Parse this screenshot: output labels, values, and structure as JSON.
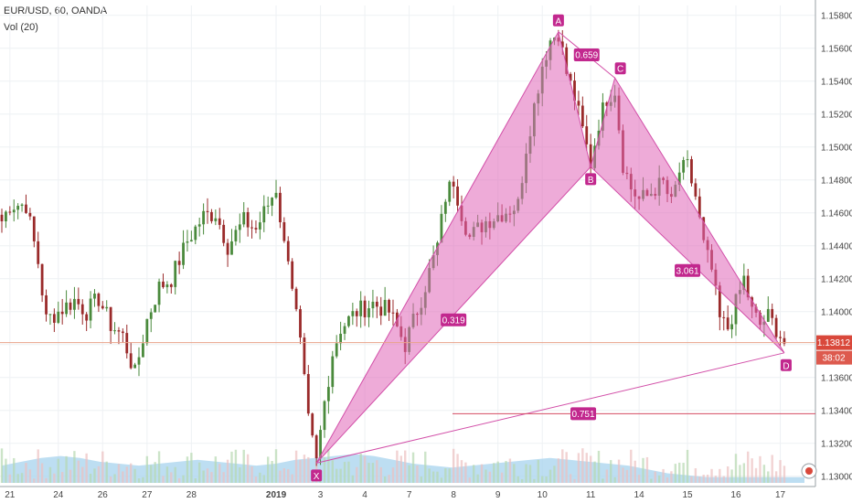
{
  "header": {
    "symbol_line": "EUR/USD, 60, OANDA",
    "volume_line": "Vol (20)"
  },
  "colors": {
    "up_candle": "#4a8a3c",
    "down_candle": "#9a2a2a",
    "pattern_fill": "#e066b8",
    "pattern_line": "#d24fa8",
    "label_bg": "#c2288e",
    "price_badge_bg": "#d9483b",
    "price_line": "#e8a28a",
    "target_line": "#d44b63",
    "volume_area": "#a7d3ee",
    "grid": "#eef1f4"
  },
  "chart_data": {
    "type": "candlestick",
    "title": "EUR/USD, 60, OANDA",
    "ylim": [
      1.1296,
      1.1586
    ],
    "x_tick_labels": [
      "21",
      "24",
      "26",
      "27",
      "28",
      "2019",
      "3",
      "4",
      "7",
      "8",
      "9",
      "10",
      "11",
      "14",
      "15",
      "16",
      "17"
    ],
    "y_tick_labels": [
      "1.15800",
      "1.15600",
      "1.15400",
      "1.15200",
      "1.15000",
      "1.14800",
      "1.14600",
      "1.14400",
      "1.14200",
      "1.14000",
      "1.13800",
      "1.13600",
      "1.13400",
      "1.13200",
      "1.13000"
    ],
    "last_price": "1.13812",
    "countdown": "38:02",
    "price_series": {
      "name": "EUR/USD",
      "anchors": [
        [
          0,
          1.1455
        ],
        [
          2,
          1.1465
        ],
        [
          6,
          1.1465
        ],
        [
          9,
          1.143
        ],
        [
          11,
          1.1395
        ],
        [
          14,
          1.14
        ],
        [
          18,
          1.1407
        ],
        [
          21,
          1.14
        ],
        [
          24,
          1.1408
        ],
        [
          27,
          1.1392
        ],
        [
          30,
          1.1385
        ],
        [
          33,
          1.1362
        ],
        [
          36,
          1.1395
        ],
        [
          39,
          1.1415
        ],
        [
          42,
          1.142
        ],
        [
          46,
          1.1443
        ],
        [
          50,
          1.1458
        ],
        [
          53,
          1.146
        ],
        [
          56,
          1.144
        ],
        [
          60,
          1.1455
        ],
        [
          63,
          1.145
        ],
        [
          66,
          1.1465
        ],
        [
          68,
          1.1475
        ],
        [
          70,
          1.144
        ],
        [
          71,
          1.1435
        ],
        [
          74,
          1.138
        ],
        [
          76,
          1.1333
        ],
        [
          78,
          1.1308
        ],
        [
          80,
          1.1345
        ],
        [
          82,
          1.1375
        ],
        [
          84,
          1.139
        ],
        [
          88,
          1.14
        ],
        [
          92,
          1.1405
        ],
        [
          96,
          1.14
        ],
        [
          100,
          1.138
        ],
        [
          104,
          1.1408
        ],
        [
          108,
          1.144
        ],
        [
          110,
          1.147
        ],
        [
          112,
          1.148
        ],
        [
          114,
          1.146
        ],
        [
          116,
          1.1445
        ],
        [
          120,
          1.1455
        ],
        [
          124,
          1.146
        ],
        [
          128,
          1.1465
        ],
        [
          130,
          1.15
        ],
        [
          132,
          1.1525
        ],
        [
          134,
          1.155
        ],
        [
          136,
          1.1565
        ],
        [
          138,
          1.157
        ],
        [
          140,
          1.1545
        ],
        [
          142,
          1.153
        ],
        [
          144,
          1.151
        ],
        [
          146,
          1.149
        ],
        [
          148,
          1.1515
        ],
        [
          150,
          1.153
        ],
        [
          152,
          1.1535
        ],
        [
          154,
          1.149
        ],
        [
          156,
          1.1475
        ],
        [
          158,
          1.1468
        ],
        [
          160,
          1.147
        ],
        [
          162,
          1.1475
        ],
        [
          164,
          1.1478
        ],
        [
          166,
          1.1465
        ],
        [
          168,
          1.1485
        ],
        [
          170,
          1.1488
        ],
        [
          172,
          1.147
        ],
        [
          174,
          1.144
        ],
        [
          176,
          1.1425
        ],
        [
          178,
          1.1395
        ],
        [
          180,
          1.139
        ],
        [
          182,
          1.1405
        ],
        [
          184,
          1.142
        ],
        [
          186,
          1.14
        ],
        [
          188,
          1.1392
        ],
        [
          190,
          1.1397
        ],
        [
          192,
          1.139
        ],
        [
          194,
          1.1381
        ]
      ]
    },
    "harmonic_pattern": {
      "points": [
        {
          "label": "X",
          "bar": 78,
          "price": 1.1308
        },
        {
          "label": "A",
          "bar": 138,
          "price": 1.157
        },
        {
          "label": "B",
          "bar": 146,
          "price": 1.1488
        },
        {
          "label": "C",
          "bar": 152,
          "price": 1.1542
        },
        {
          "label": "D",
          "bar": 194,
          "price": 1.1375
        }
      ],
      "ratios": [
        {
          "value": "0.659",
          "between": "A-C"
        },
        {
          "value": "0.319",
          "between": "X-B"
        },
        {
          "value": "3.061",
          "between": "B-D"
        },
        {
          "value": "0.751",
          "between": "X-D"
        }
      ],
      "target_level": 1.1338
    },
    "volume_series": {
      "name": "Vol (20)",
      "values": [
        0.9,
        1.1,
        1.3,
        1.4,
        1.3,
        1.1,
        1.0,
        0.9,
        1.0,
        1.1,
        1.2,
        1.1,
        1.0,
        0.9,
        1.0,
        1.2,
        1.3,
        1.4,
        1.5,
        1.4,
        1.2,
        1.0,
        0.9,
        0.8,
        0.9,
        1.0,
        1.1,
        1.2,
        1.3,
        1.2,
        1.1,
        1.0,
        0.9,
        0.7,
        0.5,
        0.4,
        0.3,
        0.3,
        0.3,
        0.3,
        0.3,
        0.3
      ]
    }
  }
}
